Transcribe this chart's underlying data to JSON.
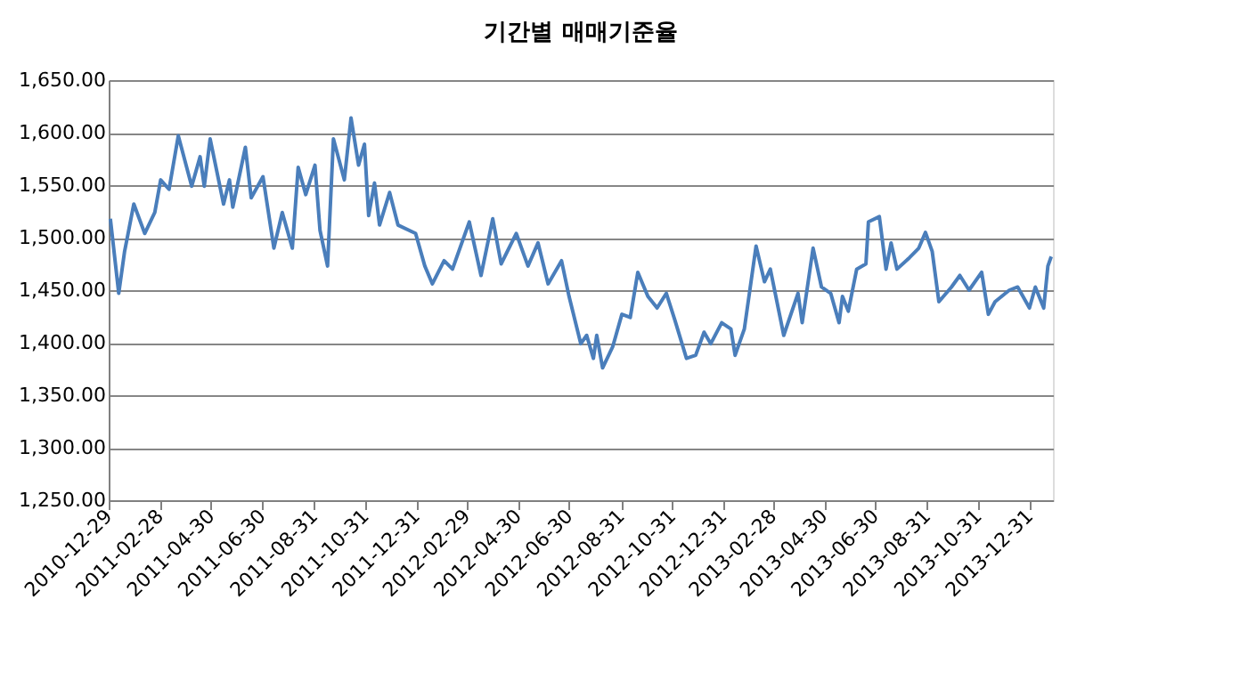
{
  "chart_data": {
    "type": "line",
    "title": "기간별 매매기준율",
    "x": [
      "2010-12-31",
      "2011-01-10",
      "2011-01-17",
      "2011-01-28",
      "2011-02-10",
      "2011-02-22",
      "2011-03-01",
      "2011-03-11",
      "2011-03-22",
      "2011-04-07",
      "2011-04-17",
      "2011-04-22",
      "2011-04-29",
      "2011-05-15",
      "2011-05-22",
      "2011-05-26",
      "2011-06-10",
      "2011-06-17",
      "2011-07-01",
      "2011-07-14",
      "2011-07-24",
      "2011-08-05",
      "2011-08-12",
      "2011-08-21",
      "2011-09-01",
      "2011-09-07",
      "2011-09-16",
      "2011-09-23",
      "2011-10-06",
      "2011-10-14",
      "2011-10-23",
      "2011-10-30",
      "2011-11-04",
      "2011-11-11",
      "2011-11-17",
      "2011-11-29",
      "2011-12-09",
      "2011-12-30",
      "2012-01-10",
      "2012-01-19",
      "2012-02-02",
      "2012-02-12",
      "2012-03-03",
      "2012-03-17",
      "2012-03-31",
      "2012-04-10",
      "2012-04-28",
      "2012-05-12",
      "2012-05-24",
      "2012-06-05",
      "2012-06-21",
      "2012-06-30",
      "2012-07-14",
      "2012-07-21",
      "2012-07-29",
      "2012-08-02",
      "2012-08-09",
      "2012-08-21",
      "2012-09-01",
      "2012-09-11",
      "2012-09-20",
      "2012-10-02",
      "2012-10-13",
      "2012-10-24",
      "2012-11-03",
      "2012-11-17",
      "2012-11-28",
      "2012-12-08",
      "2012-12-16",
      "2012-12-29",
      "2013-01-09",
      "2013-01-14",
      "2013-01-25",
      "2013-02-08",
      "2013-02-18",
      "2013-02-25",
      "2013-03-13",
      "2013-03-30",
      "2013-04-04",
      "2013-04-17",
      "2013-04-27",
      "2013-05-08",
      "2013-05-18",
      "2013-05-22",
      "2013-05-29",
      "2013-06-08",
      "2013-06-19",
      "2013-06-22",
      "2013-07-05",
      "2013-07-13",
      "2013-07-19",
      "2013-07-26",
      "2013-08-10",
      "2013-08-21",
      "2013-08-29",
      "2013-09-06",
      "2013-09-14",
      "2013-09-29",
      "2013-10-09",
      "2013-10-20",
      "2013-11-04",
      "2013-11-12",
      "2013-11-20",
      "2013-12-07",
      "2013-12-17",
      "2013-12-31",
      "2014-01-07",
      "2014-01-17",
      "2014-01-22",
      "2014-01-26"
    ],
    "series": [
      {
        "color": "#4a7ebb",
        "values": [
          1518,
          1447,
          1487,
          1532,
          1504,
          1524,
          1555,
          1546,
          1597,
          1549,
          1577,
          1549,
          1594,
          1532,
          1555,
          1529,
          1586,
          1538,
          1558,
          1490,
          1524,
          1490,
          1567,
          1541,
          1569,
          1507,
          1473,
          1594,
          1555,
          1614,
          1569,
          1589,
          1521,
          1552,
          1512,
          1543,
          1512,
          1504,
          1473,
          1456,
          1478,
          1470,
          1515,
          1464,
          1518,
          1475,
          1504,
          1473,
          1495,
          1456,
          1478,
          1444,
          1399,
          1407,
          1385,
          1407,
          1376,
          1396,
          1427,
          1424,
          1467,
          1444,
          1433,
          1447,
          1422,
          1385,
          1388,
          1410,
          1399,
          1419,
          1413,
          1388,
          1413,
          1492,
          1458,
          1470,
          1407,
          1447,
          1419,
          1490,
          1453,
          1447,
          1419,
          1444,
          1430,
          1470,
          1475,
          1515,
          1520,
          1470,
          1495,
          1470,
          1481,
          1490,
          1505,
          1487,
          1439,
          1453,
          1464,
          1450,
          1467,
          1427,
          1439,
          1450,
          1453,
          1433,
          1453,
          1433,
          1473,
          1482
        ]
      }
    ],
    "xlim": [
      "2010-12-29",
      "2014-01-28"
    ],
    "xticks": [
      "2010-12-29",
      "2011-02-28",
      "2011-04-30",
      "2011-06-30",
      "2011-08-31",
      "2011-10-31",
      "2011-12-31",
      "2012-02-29",
      "2012-04-30",
      "2012-06-30",
      "2012-08-31",
      "2012-10-31",
      "2012-12-31",
      "2013-02-28",
      "2013-04-30",
      "2013-06-30",
      "2013-08-31",
      "2013-10-31",
      "2013-12-31"
    ],
    "ylim": [
      1250,
      1650
    ],
    "yticks": [
      {
        "value": 1250,
        "label": "1,250.00"
      },
      {
        "value": 1300,
        "label": "1,300.00"
      },
      {
        "value": 1350,
        "label": "1,350.00"
      },
      {
        "value": 1400,
        "label": "1,400.00"
      },
      {
        "value": 1450,
        "label": "1,450.00"
      },
      {
        "value": 1500,
        "label": "1,500.00"
      },
      {
        "value": 1550,
        "label": "1,550.00"
      },
      {
        "value": 1600,
        "label": "1,600.00"
      },
      {
        "value": 1650,
        "label": "1,650.00"
      }
    ],
    "grid": "y",
    "marker": "none",
    "line_style": "solid"
  }
}
